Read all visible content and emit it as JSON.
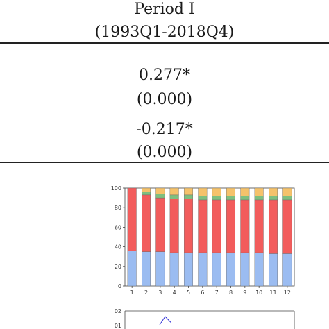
{
  "table": {
    "header_line1": "Period I",
    "header_line2": "(1993Q1-2018Q4)",
    "row1_value": "0.277*",
    "row1_pvalue": "(0.000)",
    "row2_value": "-0.217*",
    "row2_pvalue": "(0.000)"
  },
  "chart_data": [
    {
      "type": "bar",
      "stacked": true,
      "categories": [
        "1",
        "2",
        "3",
        "4",
        "5",
        "6",
        "7",
        "8",
        "9",
        "10",
        "11",
        "12"
      ],
      "ylim": [
        0,
        100
      ],
      "yticks": [
        "0",
        "20",
        "40",
        "60",
        "80",
        "100"
      ],
      "series": [
        {
          "color": "#9bbcf1",
          "values": [
            36,
            35,
            35,
            34,
            34,
            34,
            34,
            34,
            34,
            34,
            33,
            33
          ]
        },
        {
          "color": "#f25c5c",
          "values": [
            64,
            58,
            55,
            55,
            55,
            54,
            54,
            54,
            54,
            54,
            55,
            55
          ]
        },
        {
          "color": "#7fbf7f",
          "values": [
            0,
            3,
            4,
            4,
            4,
            4,
            4,
            4,
            4,
            4,
            4,
            4
          ]
        },
        {
          "color": "#f5c26b",
          "values": [
            0,
            4,
            6,
            7,
            7,
            8,
            8,
            8,
            8,
            8,
            8,
            8
          ]
        }
      ],
      "grid": false
    },
    {
      "type": "line",
      "yticks": [
        "02",
        "01"
      ],
      "series": [
        {
          "color": "#2b2bd6",
          "values": [
            0.005,
            0.015,
            0.008
          ]
        }
      ]
    }
  ]
}
